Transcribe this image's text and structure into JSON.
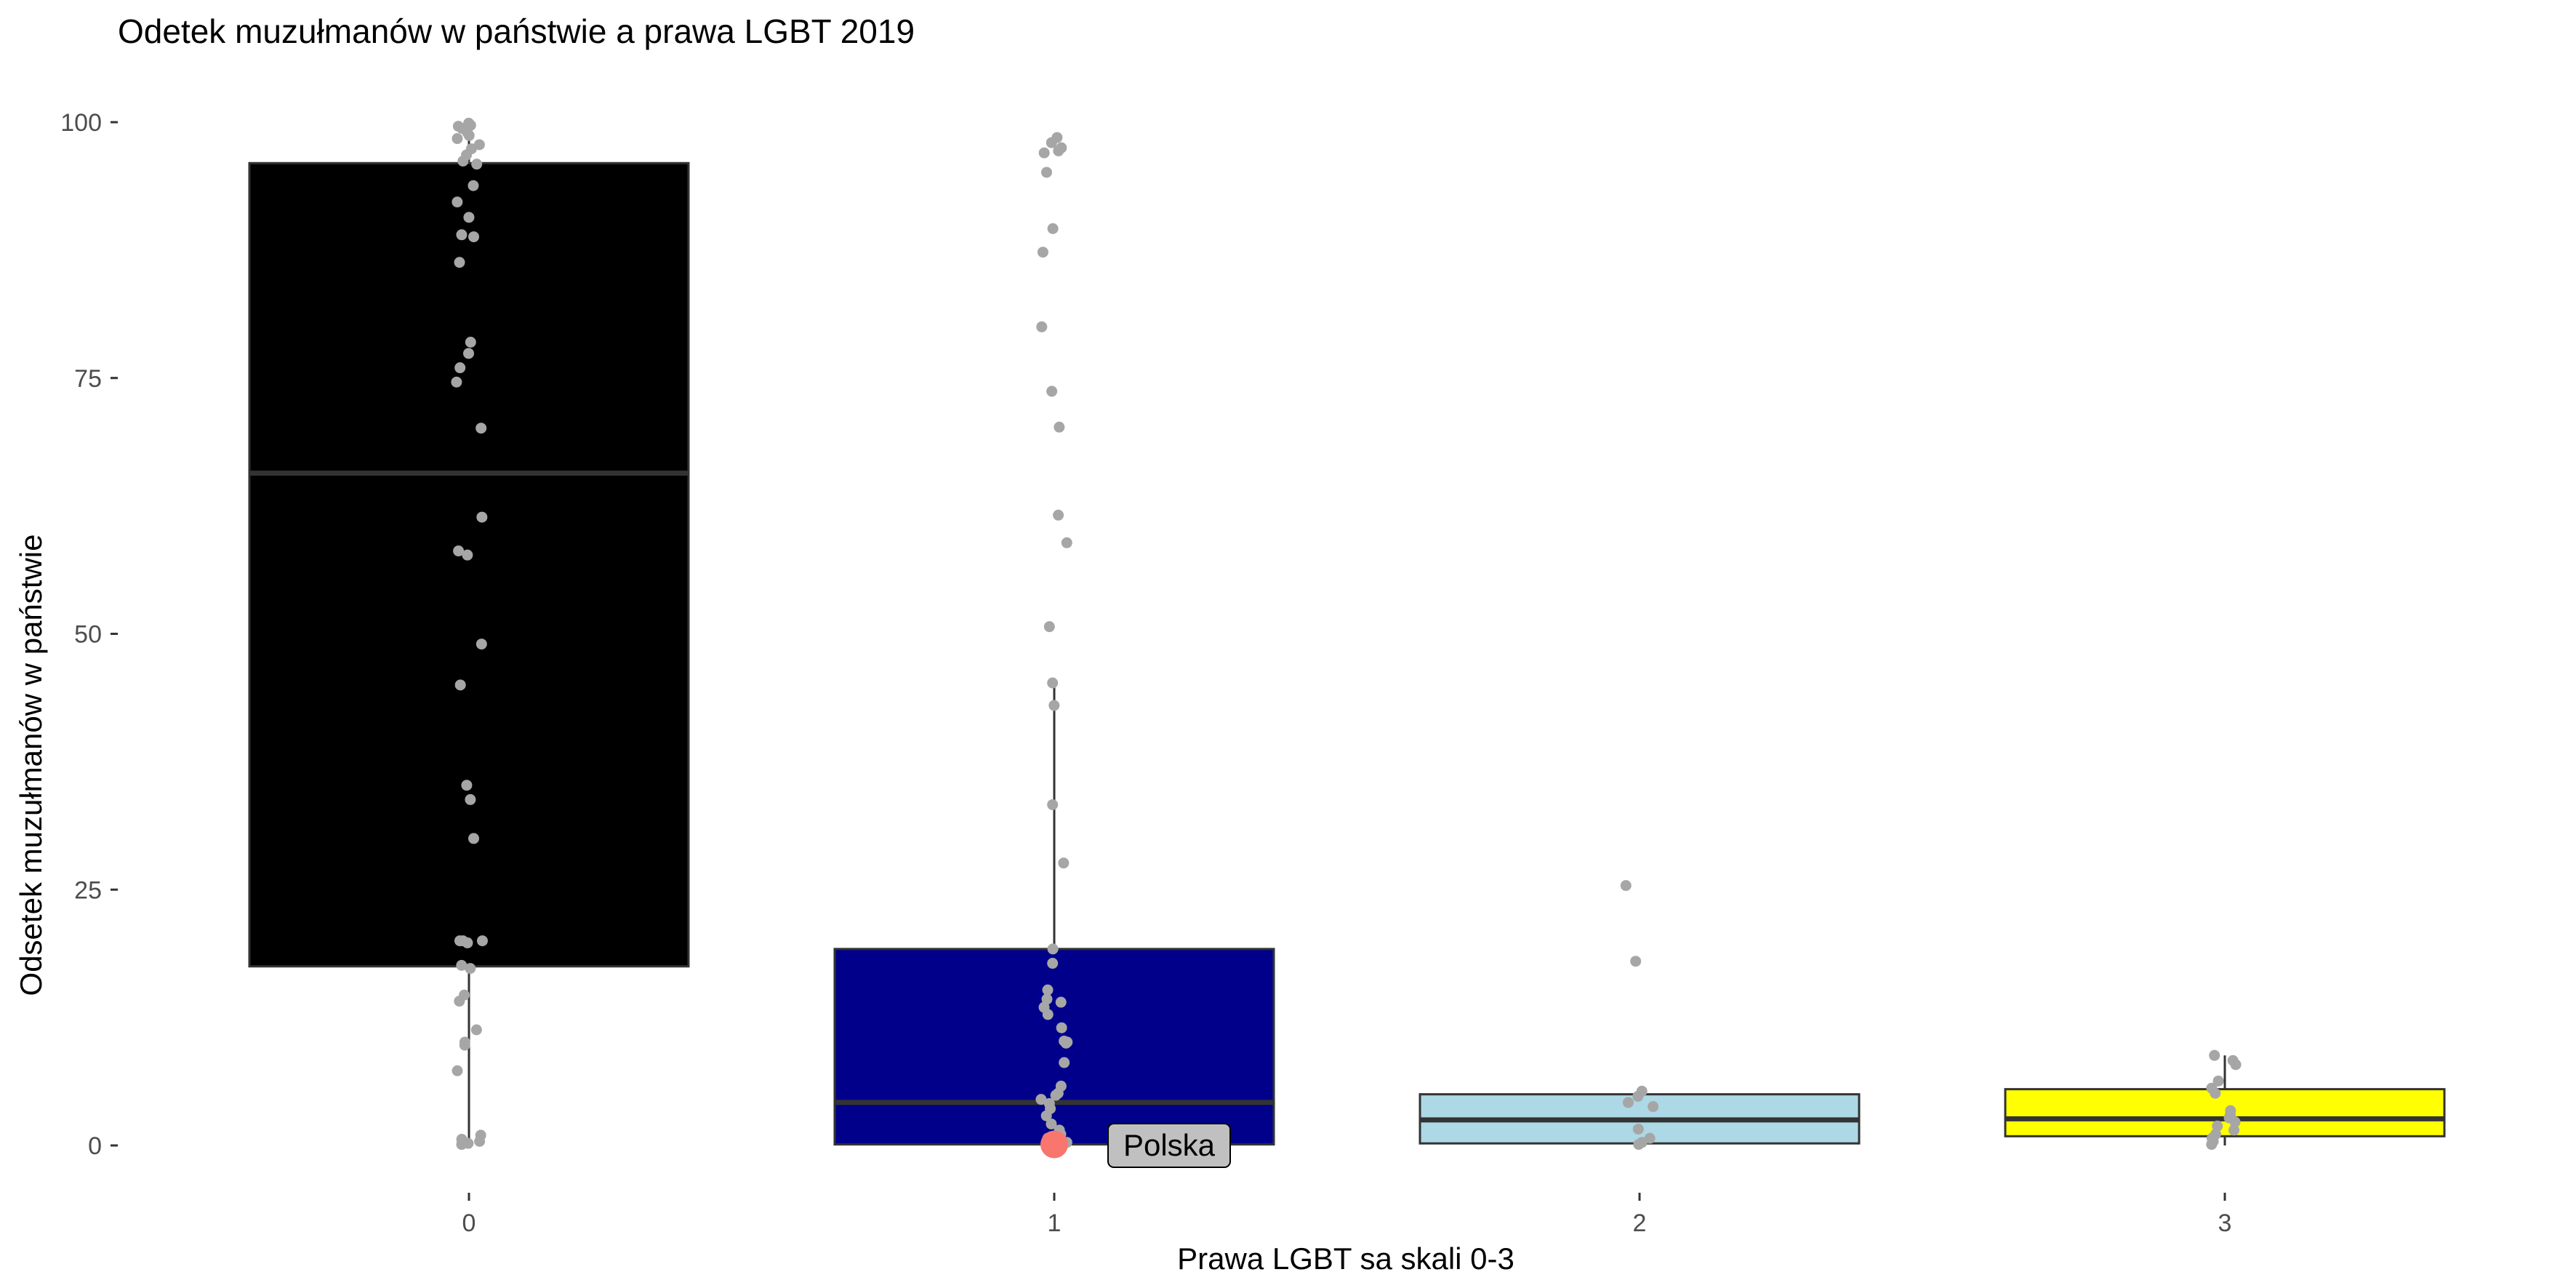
{
  "chart_data": {
    "type": "boxplot",
    "title": "Odetek muzułmanów w państwie a prawa LGBT 2019",
    "xlabel": "Prawa LGBT sa skali 0-3",
    "ylabel": "Odsetek muzułmanów w państwie",
    "ylim": [
      0,
      100
    ],
    "yticks": [
      0,
      25,
      50,
      75,
      100
    ],
    "categories": [
      "0",
      "1",
      "2",
      "3"
    ],
    "boxes": [
      {
        "category": "0",
        "fill": "#000000",
        "whisker_low": 0,
        "q1": 17.5,
        "median": 65.7,
        "q3": 96,
        "whisker_high": 99.9,
        "points": [
          99.9,
          99.7,
          99.6,
          99.4,
          99,
          98.7,
          98.4,
          97.8,
          97.4,
          96.8,
          96.2,
          95.9,
          93.8,
          92.2,
          90.7,
          89,
          88.8,
          86.3,
          78.5,
          77.4,
          76,
          74.6,
          70.1,
          61.4,
          58.1,
          57.7,
          49,
          45,
          35.2,
          33.8,
          30,
          20,
          20,
          20,
          19.8,
          17.6,
          17.3,
          14.7,
          14.1,
          11.3,
          10.1,
          9.8,
          7.3,
          1,
          0.6,
          0.4,
          0.2,
          0.1
        ]
      },
      {
        "category": "1",
        "fill": "#00008b",
        "whisker_low": 0,
        "q1": 0.1,
        "median": 4.2,
        "q3": 19.2,
        "whisker_high": 45,
        "points": [
          98.5,
          98,
          97.5,
          97.2,
          97,
          95.1,
          89.6,
          87.3,
          80,
          73.7,
          70.2,
          61.6,
          58.9,
          50.7,
          45.2,
          43,
          33.3,
          27.6,
          19.2,
          17.8,
          15.2,
          14.3,
          14,
          13.5,
          12.8,
          11.5,
          10.2,
          10.1,
          10,
          8.1,
          5.8,
          5.1,
          4.9,
          4.5,
          4.1,
          3.6,
          2.9,
          2.1,
          1.5,
          1.1,
          0.7,
          0.3
        ]
      },
      {
        "category": "2",
        "fill": "#add8e6",
        "whisker_low": 0,
        "q1": 0.2,
        "median": 2.5,
        "q3": 5,
        "whisker_high": 5.3,
        "points": [
          25.4,
          18,
          5.3,
          4.8,
          4.2,
          3.8,
          1.6,
          0.7,
          0.3,
          0.1
        ]
      },
      {
        "category": "3",
        "fill": "#ffff00",
        "whisker_low": 0,
        "q1": 0.9,
        "median": 2.6,
        "q3": 5.5,
        "whisker_high": 8.8,
        "points": [
          8.8,
          8.3,
          7.9,
          6.3,
          5.6,
          5.1,
          3.4,
          3,
          2.7,
          2.3,
          1.9,
          1.5,
          1.1,
          0.7,
          0.4,
          0.1
        ]
      }
    ],
    "highlight": {
      "category": "1",
      "value": 0.1,
      "label": "Polska",
      "color": "#f8766d"
    },
    "point_color": "#a6a6a6",
    "grid": false
  }
}
